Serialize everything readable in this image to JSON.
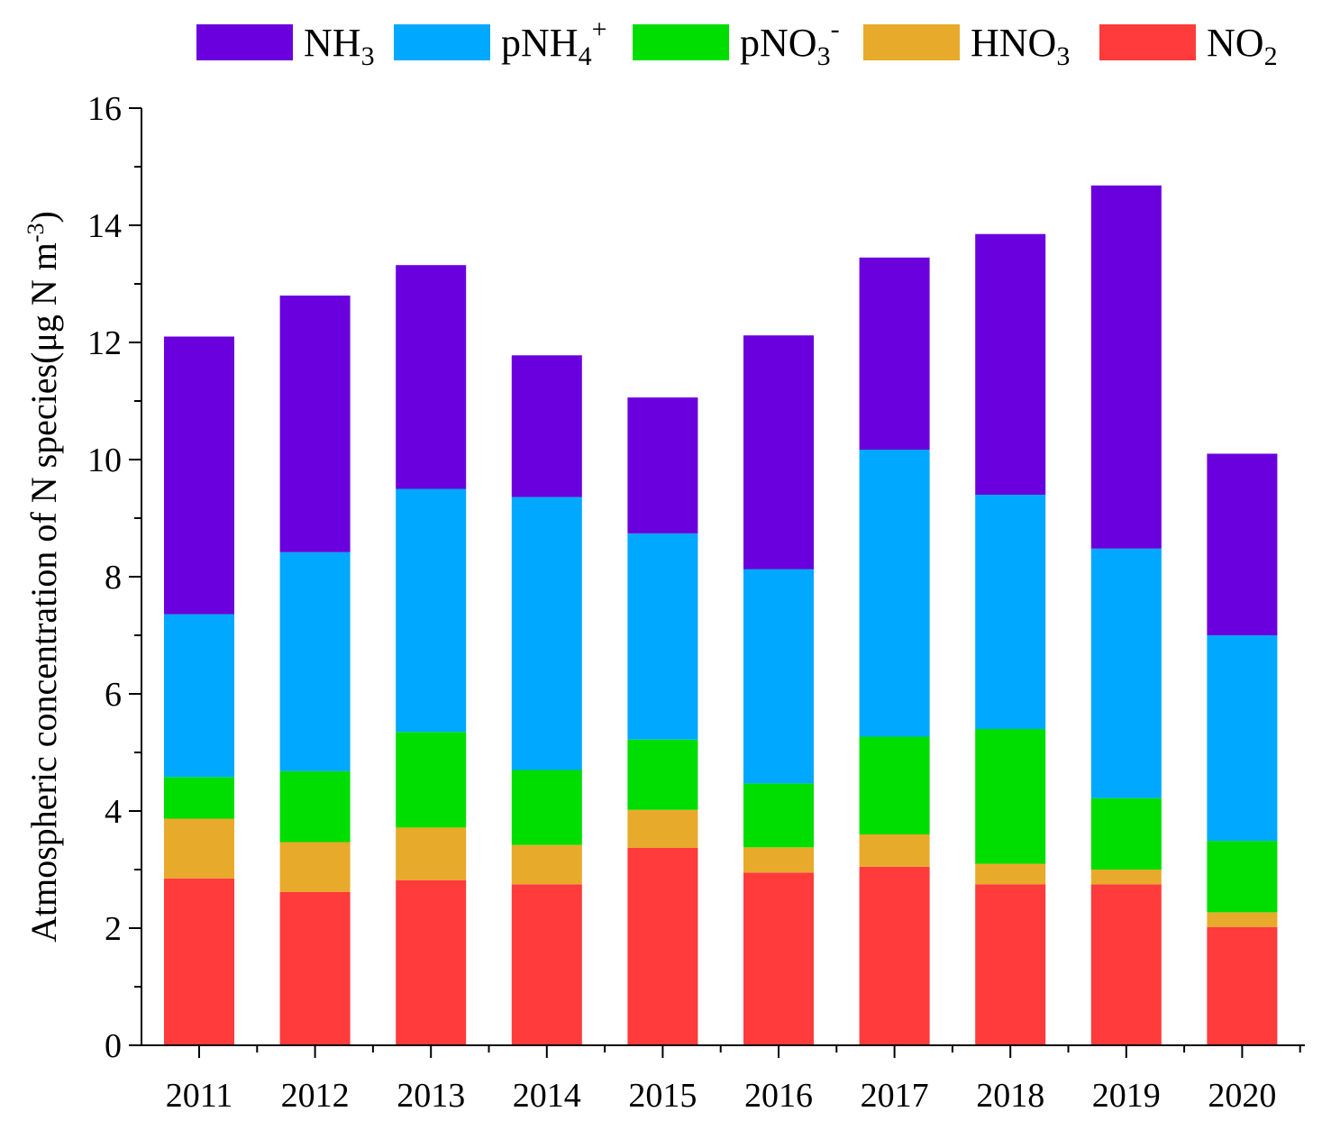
{
  "chart_data": {
    "type": "bar",
    "stacked": true,
    "title": "",
    "xlabel": "",
    "ylabel": "Atmospheric concentration of N species(μg N m-3)",
    "ylabel_parts": {
      "main": "Atmospheric concentration of N species(μg N m",
      "sup": "-3",
      "close": ")"
    },
    "ylim": [
      0,
      16
    ],
    "yticks": [
      "0",
      "2",
      "4",
      "6",
      "8",
      "10",
      "12",
      "14",
      "16"
    ],
    "categories": [
      "2011",
      "2012",
      "2013",
      "2014",
      "2015",
      "2016",
      "2017",
      "2018",
      "2019",
      "2020"
    ],
    "legend_position": "top",
    "series": [
      {
        "name": "NO2",
        "label_main": "NO",
        "label_sub": "2",
        "label_sup": "",
        "color": "#ff3b3b",
        "values": [
          2.85,
          2.62,
          2.82,
          2.75,
          3.37,
          2.95,
          3.05,
          2.75,
          2.75,
          2.02
        ]
      },
      {
        "name": "HNO3",
        "label_main": "HNO",
        "label_sub": "3",
        "label_sup": "",
        "color": "#e8aa2a",
        "values": [
          1.02,
          0.85,
          0.9,
          0.67,
          0.65,
          0.43,
          0.55,
          0.35,
          0.25,
          0.25
        ]
      },
      {
        "name": "pNO3-",
        "label_main": "pNO",
        "label_sub": "3",
        "label_sup": "-",
        "color": "#00dd00",
        "values": [
          0.71,
          1.21,
          1.63,
          1.28,
          1.2,
          1.09,
          1.67,
          2.3,
          1.22,
          1.22
        ]
      },
      {
        "name": "pNH4+",
        "label_main": "pNH",
        "label_sub": "4",
        "label_sup": "+",
        "color": "#00a8ff",
        "values": [
          2.78,
          3.74,
          4.15,
          4.66,
          3.52,
          3.66,
          4.9,
          4.0,
          4.26,
          3.51
        ]
      },
      {
        "name": "NH3",
        "label_main": "NH",
        "label_sub": "3",
        "label_sup": "",
        "color": "#6a00dd",
        "values": [
          4.74,
          4.38,
          3.82,
          2.42,
          2.32,
          3.99,
          3.28,
          4.45,
          6.2,
          3.1
        ]
      }
    ],
    "legend_order": [
      "NH3",
      "pNH4+",
      "pNO3-",
      "HNO3",
      "NO2"
    ]
  }
}
